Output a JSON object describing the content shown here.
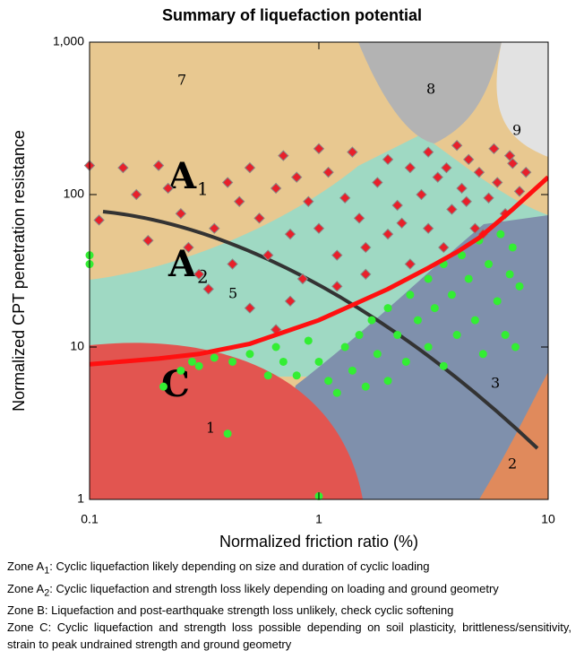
{
  "chart_data": {
    "type": "scatter",
    "title": "Summary of liquefaction potential",
    "x_label": "Normalized friction ratio (%)",
    "y_label": "Normalized CPT penetration resistance",
    "xlim": [
      0.1,
      10
    ],
    "ylim": [
      1,
      1000
    ],
    "x_log": true,
    "y_log": true,
    "xticks": [
      0.1,
      1,
      10
    ],
    "yticks": [
      1,
      10,
      100,
      {
        "value": 1000,
        "label": "1,000"
      }
    ],
    "zone_letters": [
      {
        "text": "A",
        "sub": "1"
      },
      {
        "text": "A",
        "sub": "2"
      },
      {
        "text": "C"
      }
    ],
    "zone_numbers": [
      "7",
      "8",
      "9",
      "1",
      "5",
      "3",
      "2"
    ],
    "series": [
      {
        "marker": "diamond",
        "color": "#e8202a",
        "x": [
          0.1,
          0.11,
          0.14,
          0.16,
          0.18,
          0.2,
          0.22,
          0.25,
          0.27,
          0.3,
          0.33,
          0.35,
          0.4,
          0.42,
          0.45,
          0.5,
          0.55,
          0.6,
          0.65,
          0.7,
          0.75,
          0.8,
          0.85,
          0.9,
          1.0,
          1.0,
          1.1,
          1.2,
          1.3,
          1.4,
          1.5,
          1.6,
          1.8,
          2.0,
          2.0,
          2.2,
          2.5,
          2.5,
          2.8,
          3.0,
          3.0,
          3.3,
          3.5,
          3.8,
          4.0,
          4.2,
          4.5,
          4.8,
          5.0,
          5.5,
          5.8,
          6.0,
          6.5,
          7.0,
          7.5,
          8.0,
          1.2,
          0.75,
          0.5,
          0.65,
          1.6,
          2.3,
          3.6,
          4.4,
          5.2,
          6.8
        ],
        "values": [
          155,
          68,
          150,
          100,
          50,
          155,
          110,
          75,
          45,
          30,
          24,
          60,
          120,
          35,
          90,
          150,
          70,
          40,
          110,
          180,
          55,
          130,
          28,
          90,
          200,
          60,
          140,
          40,
          95,
          190,
          70,
          30,
          120,
          55,
          170,
          85,
          35,
          150,
          100,
          60,
          190,
          130,
          45,
          80,
          210,
          110,
          170,
          60,
          140,
          95,
          200,
          120,
          75,
          160,
          105,
          140,
          25,
          20,
          18,
          13,
          45,
          65,
          150,
          90,
          55,
          180
        ]
      },
      {
        "marker": "circle",
        "color": "#33ee33",
        "x": [
          0.21,
          0.25,
          0.28,
          0.3,
          0.35,
          0.4,
          0.42,
          0.5,
          0.6,
          0.65,
          0.7,
          0.8,
          0.9,
          1.0,
          1.0,
          1.1,
          1.2,
          1.3,
          1.4,
          1.5,
          1.6,
          1.7,
          1.8,
          2.0,
          2.0,
          2.2,
          2.4,
          2.5,
          2.7,
          3.0,
          3.0,
          3.2,
          3.5,
          3.5,
          3.8,
          4.0,
          4.2,
          4.5,
          4.8,
          5.0,
          5.2,
          5.5,
          6.0,
          6.2,
          6.5,
          6.8,
          7.0,
          7.2,
          7.5,
          0.1,
          0.1
        ],
        "values": [
          5.5,
          7,
          8,
          7.5,
          8.5,
          2.7,
          8,
          9,
          6.5,
          10,
          8,
          6.5,
          11,
          1.05,
          8,
          6,
          5,
          10,
          7,
          12,
          5.5,
          15,
          9,
          6,
          18,
          12,
          8,
          22,
          15,
          10,
          28,
          18,
          7.5,
          35,
          22,
          12,
          40,
          28,
          15,
          50,
          9,
          35,
          20,
          55,
          12,
          30,
          45,
          10,
          25,
          35,
          40
        ]
      },
      {
        "type": "line",
        "color": "#ff1010",
        "x": [
          0.1,
          0.2,
          0.3,
          0.5,
          1,
          2,
          3,
          4,
          5,
          7,
          10
        ],
        "values": [
          7.7,
          8.4,
          9,
          10.5,
          15,
          24,
          33,
          42,
          52,
          80,
          130
        ]
      }
    ]
  },
  "notes": [
    {
      "zone": "Zone A",
      "sub": "1",
      "text": ": Cyclic liquefaction likely depending on size and duration of cyclic loading"
    },
    {
      "zone": "Zone A",
      "sub": "2",
      "text": ": Cyclic liquefaction and strength loss likely depending on loading and ground geometry"
    },
    {
      "zone": "Zone B",
      "text": ": Liquefaction and post-earthquake strength loss unlikely, check cyclic softening"
    },
    {
      "zone": "Zone C",
      "text": ": Cyclic liquefaction and strength loss possible depending on soil plasticity, brittleness/sensitivity, strain to peak undrained strength and ground geometry"
    }
  ]
}
